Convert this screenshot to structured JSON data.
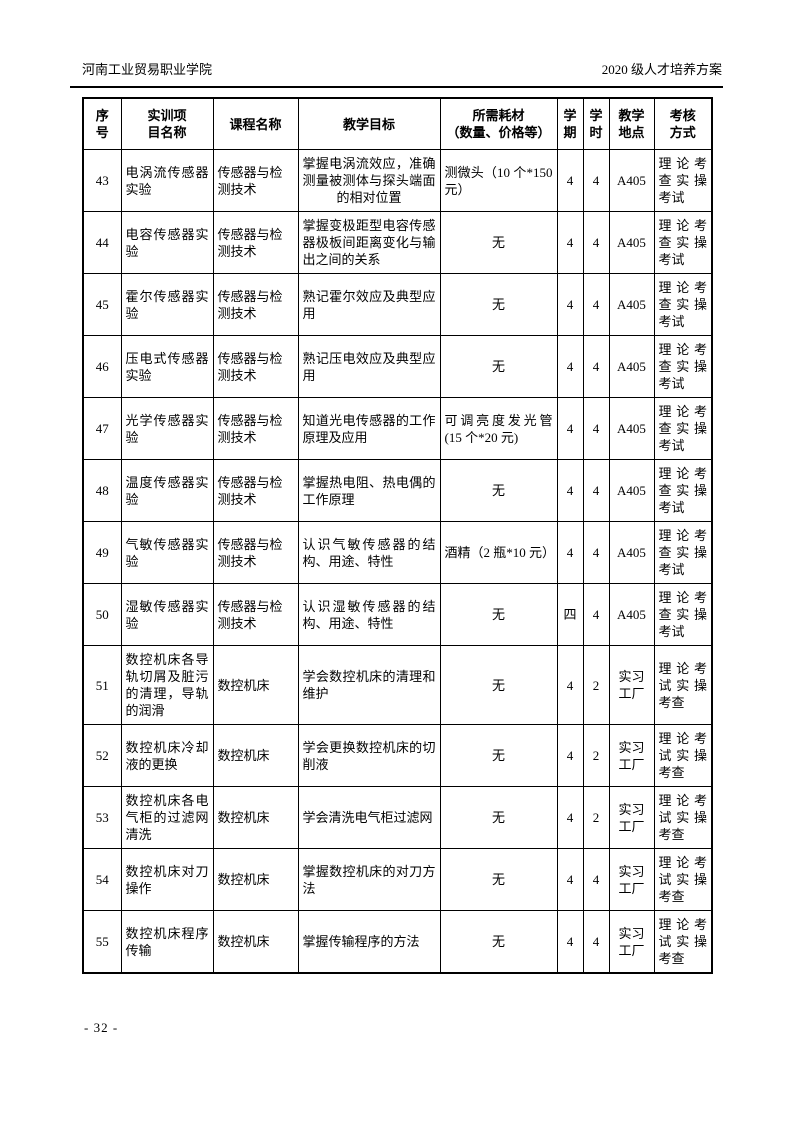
{
  "colors": {
    "ink": "#000000",
    "paper": "#ffffff"
  },
  "page_header": {
    "left": "河南工业贸易职业学院",
    "right": "2020 级人才培养方案"
  },
  "table": {
    "columns": [
      {
        "key": "no",
        "label": [
          "序",
          "号"
        ]
      },
      {
        "key": "project",
        "label": [
          "实训项",
          "目名称"
        ]
      },
      {
        "key": "course",
        "label": [
          "课程名称"
        ]
      },
      {
        "key": "goal",
        "label": [
          "教学目标"
        ]
      },
      {
        "key": "consumables",
        "label": [
          "所需耗材",
          "（数量、价格等）"
        ]
      },
      {
        "key": "semester",
        "label": [
          "学",
          "期"
        ]
      },
      {
        "key": "hours",
        "label": [
          "学",
          "时"
        ]
      },
      {
        "key": "location",
        "label": [
          "教学",
          "地点"
        ]
      },
      {
        "key": "assessment",
        "label": [
          "考核",
          "方式"
        ]
      }
    ],
    "rows": [
      {
        "no": "43",
        "project": "电涡流传感器实验",
        "course": "传感器与检测技术",
        "goal": "掌握电涡流效应，准确测量被测体与探头端面的相对位置",
        "consumables": "测微头（10 个*150 元）",
        "semester": "4",
        "hours": "4",
        "location": "A405",
        "assessment": "理论考查实操考试"
      },
      {
        "no": "44",
        "project": "电容传感器实验",
        "course": "传感器与检测技术",
        "goal": "掌握变极距型电容传感器极板间距离变化与输出之间的关系",
        "consumables": "无",
        "semester": "4",
        "hours": "4",
        "location": "A405",
        "assessment": "理论考查实操考试"
      },
      {
        "no": "45",
        "project": "霍尔传感器实验",
        "course": "传感器与检测技术",
        "goal": "熟记霍尔效应及典型应用",
        "consumables": "无",
        "semester": "4",
        "hours": "4",
        "location": "A405",
        "assessment": "理论考查实操考试"
      },
      {
        "no": "46",
        "project": "压电式传感器实验",
        "course": "传感器与检测技术",
        "goal": "熟记压电效应及典型应用",
        "consumables": "无",
        "semester": "4",
        "hours": "4",
        "location": "A405",
        "assessment": "理论考查实操考试"
      },
      {
        "no": "47",
        "project": "光学传感器实验",
        "course": "传感器与检测技术",
        "goal": "知道光电传感器的工作原理及应用",
        "consumables": "可调亮度发光管(15 个*20 元)",
        "semester": "4",
        "hours": "4",
        "location": "A405",
        "assessment": "理论考查实操考试"
      },
      {
        "no": "48",
        "project": "温度传感器实验",
        "course": "传感器与检测技术",
        "goal": "掌握热电阻、热电偶的工作原理",
        "consumables": "无",
        "semester": "4",
        "hours": "4",
        "location": "A405",
        "assessment": "理论考查实操考试"
      },
      {
        "no": "49",
        "project": "气敏传感器实验",
        "course": "传感器与检测技术",
        "goal": "认识气敏传感器的结构、用途、特性",
        "consumables": "酒精（2 瓶*10 元）",
        "semester": "4",
        "hours": "4",
        "location": "A405",
        "assessment": "理论考查实操考试"
      },
      {
        "no": "50",
        "project": "湿敏传感器实验",
        "course": "传感器与检测技术",
        "goal": "认识湿敏传感器的结构、用途、特性",
        "consumables": "无",
        "semester": "四",
        "hours": "4",
        "location": "A405",
        "assessment": "理论考查实操考试"
      },
      {
        "no": "51",
        "project": "数控机床各导轨切屑及脏污的清理，导轨的润滑",
        "course": "数控机床",
        "goal": "学会数控机床的清理和维护",
        "consumables": "无",
        "semester": "4",
        "hours": "2",
        "location": "实习工厂",
        "assessment": "理论考试实操考查"
      },
      {
        "no": "52",
        "project": "数控机床冷却液的更换",
        "course": "数控机床",
        "goal": "学会更换数控机床的切削液",
        "consumables": "无",
        "semester": "4",
        "hours": "2",
        "location": "实习工厂",
        "assessment": "理论考试实操考查"
      },
      {
        "no": "53",
        "project": "数控机床各电气柜的过滤网清洗",
        "course": "数控机床",
        "goal": "学会清洗电气柜过滤网",
        "consumables": "无",
        "semester": "4",
        "hours": "2",
        "location": "实习工厂",
        "assessment": "理论考试实操考查"
      },
      {
        "no": "54",
        "project": "数控机床对刀操作",
        "course": "数控机床",
        "goal": "掌握数控机床的对刀方法",
        "consumables": "无",
        "semester": "4",
        "hours": "4",
        "location": "实习工厂",
        "assessment": "理论考试实操考查"
      },
      {
        "no": "55",
        "project": "数控机床程序传输",
        "course": "数控机床",
        "goal": "掌握传输程序的方法",
        "consumables": "无",
        "semester": "4",
        "hours": "4",
        "location": "实习工厂",
        "assessment": "理论考试实操考查"
      }
    ]
  },
  "footer": {
    "page_number": "- 32 -"
  }
}
